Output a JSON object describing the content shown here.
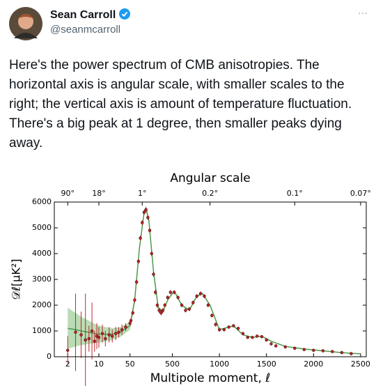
{
  "tweet": {
    "name": "Sean Carroll",
    "handle": "@seanmcarroll",
    "more": "···",
    "text": "Here's the power spectrum of CMB anisotropies. The horizontal axis is angular scale, with smaller scales to the right; the vertical axis is amount of temperature fluctuation. There's a big peak at 1 degree, then smaller peaks dying away."
  },
  "chart_data": {
    "type": "scatter",
    "title": "Angular scale",
    "xlabel": "Multipole moment, ℓ",
    "ylabel": "𝒟ℓ[μK²]",
    "xscale": "log-linear",
    "xscale_break": 50,
    "xlim": [
      1,
      2560
    ],
    "xticks": [
      2,
      10,
      50,
      500,
      1000,
      1500,
      2000,
      2500
    ],
    "x2ticks": [
      {
        "value": 2,
        "label": "90°"
      },
      {
        "value": 10,
        "label": "18°"
      },
      {
        "value": 180,
        "label": "1°"
      },
      {
        "value": 900,
        "label": "0.2°"
      },
      {
        "value": 1800,
        "label": "0.1°"
      },
      {
        "value": 2500,
        "label": "0.07°"
      }
    ],
    "ylim": [
      0,
      6000
    ],
    "yticks": [
      0,
      1000,
      2000,
      3000,
      4000,
      5000,
      6000
    ],
    "series": [
      {
        "color": "#4a9a4a",
        "band_color": "#b9dcb5",
        "x": [
          2,
          3,
          4,
          6,
          8,
          10,
          15,
          20,
          30,
          50,
          100,
          150,
          200,
          220,
          250,
          300,
          350,
          400,
          450,
          520,
          600,
          680,
          760,
          820,
          900,
          1000,
          1100,
          1150,
          1250,
          1350,
          1450,
          1550,
          1700,
          1900,
          2100,
          2300,
          2500
        ],
        "values": [
          1100,
          1050,
          1000,
          950,
          900,
          880,
          870,
          880,
          950,
          1200,
          2200,
          4200,
          5600,
          5750,
          5300,
          3300,
          1900,
          1750,
          2200,
          2550,
          2000,
          1800,
          2350,
          2450,
          2000,
          1050,
          1150,
          1200,
          850,
          750,
          800,
          600,
          400,
          300,
          230,
          160,
          110
        ],
        "errors": [
          800,
          650,
          550,
          450,
          380,
          330,
          270,
          230,
          190,
          150,
          120,
          100,
          100,
          100,
          90,
          70,
          50,
          40,
          40,
          40,
          35,
          30,
          30,
          30,
          30,
          20,
          20,
          20,
          15,
          15,
          15,
          12,
          10,
          8,
          6,
          5,
          4
        ]
      },
      {
        "color": "#c0262a",
        "x": [
          2,
          3,
          4,
          5,
          6,
          7,
          8,
          9,
          10,
          12,
          14,
          17,
          20,
          24,
          28,
          33,
          40,
          50,
          60,
          80,
          100,
          120,
          140,
          160,
          180,
          200,
          220,
          240,
          260,
          280,
          300,
          320,
          340,
          360,
          380,
          400,
          420,
          450,
          480,
          520,
          560,
          600,
          640,
          680,
          720,
          760,
          800,
          840,
          880,
          920,
          960,
          1000,
          1050,
          1100,
          1150,
          1200,
          1250,
          1300,
          1350,
          1400,
          1450,
          1500,
          1550,
          1600,
          1700,
          1800,
          1900,
          2000,
          2100,
          2200,
          2300,
          2400
        ],
        "values": [
          250,
          950,
          850,
          650,
          700,
          1000,
          600,
          800,
          750,
          900,
          700,
          850,
          800,
          900,
          950,
          1050,
          1150,
          1300,
          1400,
          1700,
          2200,
          2900,
          3700,
          4600,
          5200,
          5600,
          5700,
          5400,
          4900,
          4000,
          3200,
          2500,
          2000,
          1800,
          1700,
          1800,
          2000,
          2300,
          2500,
          2500,
          2300,
          2000,
          1800,
          1850,
          2100,
          2350,
          2450,
          2350,
          2000,
          1600,
          1250,
          1050,
          1050,
          1150,
          1200,
          1100,
          900,
          750,
          750,
          800,
          780,
          650,
          500,
          420,
          380,
          330,
          280,
          250,
          230,
          200,
          160,
          120
        ],
        "errors": [
          550,
          1500,
          900,
          1800,
          500,
          1100,
          400,
          500,
          400,
          350,
          300,
          300,
          250,
          250,
          200,
          200,
          150,
          120,
          100,
          100,
          100,
          100,
          100,
          100,
          100,
          100,
          100,
          100,
          100,
          100,
          100,
          100,
          100,
          100,
          100,
          100,
          80,
          80,
          80,
          80,
          80,
          80,
          80,
          80,
          80,
          80,
          80,
          80,
          80,
          80,
          80,
          80,
          60,
          60,
          60,
          60,
          60,
          60,
          60,
          60,
          60,
          60,
          60,
          60,
          60,
          60,
          60,
          60,
          60,
          60,
          60,
          60
        ]
      }
    ]
  }
}
